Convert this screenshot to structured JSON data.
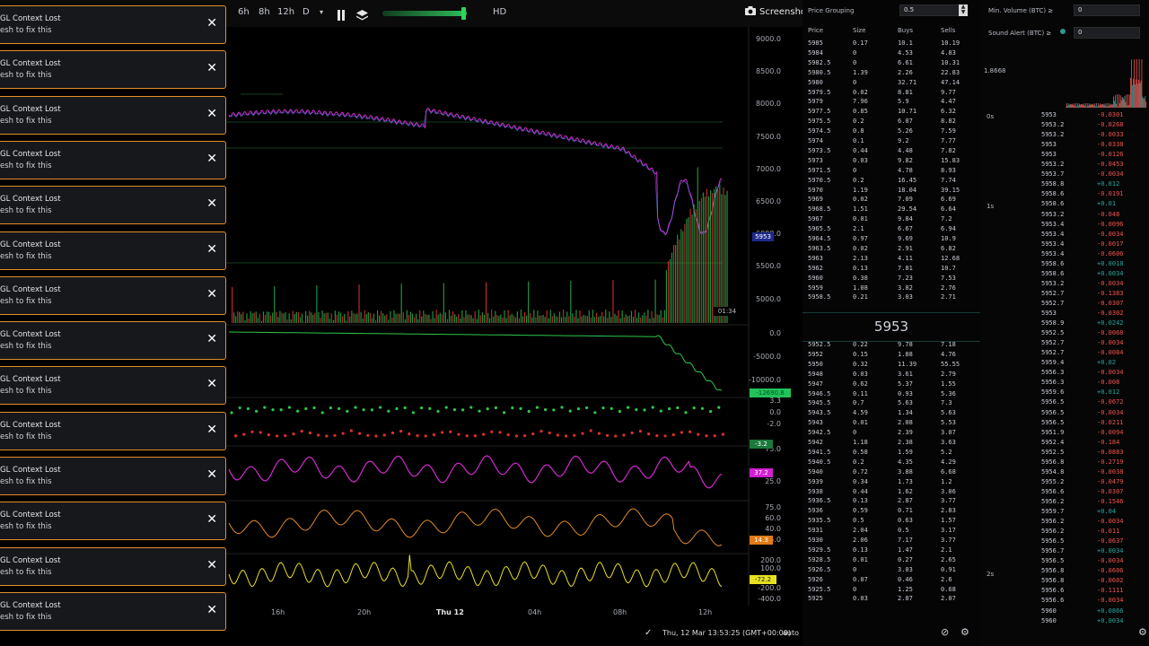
{
  "toolbar": {
    "timeframes": [
      "6h",
      "8h",
      "12h",
      "D"
    ],
    "dropdown_glyph": "▾",
    "hd_label": "HD",
    "screenshot_label": "Screenshot",
    "pause_icon": "pause-icon",
    "layers_icon": "layers-icon",
    "camera_icon": "camera-icon",
    "volume_level": 0.97,
    "accent_color": "#2ad65a"
  },
  "toast": {
    "title": "GL Context Lost",
    "message": "esh to fix this",
    "close": "✕",
    "count": 14,
    "border_color": "#e28e2c"
  },
  "price_axis": {
    "main": [
      "9000.0",
      "8500.0",
      "8000.0",
      "7500.0",
      "7000.0",
      "6500.0",
      "6000.0",
      "5500.0",
      "5000.0"
    ],
    "last_price": "5953",
    "countdown": "01:34",
    "cvd": [
      "0.0",
      "-5000.0",
      "-10000.0"
    ],
    "cvd_tag": "-12690.8",
    "delta": [
      "3.3",
      "0.0",
      "-2.0"
    ],
    "delta_tag": "-3.2",
    "rsi": [
      "75.0",
      "37.2",
      "25.0"
    ],
    "rsi2": [
      "75.0",
      "60.0",
      "40.0",
      "25.0",
      "14.3"
    ],
    "osc": [
      "200.0",
      "100.0",
      "-72.2",
      "-200.0",
      "-400.0"
    ]
  },
  "time_axis": [
    "16h",
    "20h",
    "Thu 12",
    "04h",
    "08h",
    "12h"
  ],
  "status": {
    "datetime": "Thu, 12 Mar 13:53:25 (GMT+00:00)",
    "mode": "auto",
    "check": "✓"
  },
  "orderbook": {
    "grouping_label": "Price Grouping",
    "grouping_value": "0.5",
    "columns": [
      "Price",
      "Size",
      "Buys",
      "Sells"
    ],
    "mid_price": "5953",
    "asks": [
      [
        "5985",
        "0.17",
        "10.1",
        "10.19"
      ],
      [
        "5984",
        "0",
        "4.53",
        "4.83"
      ],
      [
        "5982.5",
        "0",
        "6.61",
        "10.31"
      ],
      [
        "5980.5",
        "1.39",
        "2.26",
        "22.83"
      ],
      [
        "5980",
        "0",
        "32.71",
        "47.14"
      ],
      [
        "5979.5",
        "0.02",
        "8.81",
        "9.77"
      ],
      [
        "5979",
        "7.96",
        "5.9",
        "4.47"
      ],
      [
        "5977.5",
        "0.85",
        "10.71",
        "6.32"
      ],
      [
        "5975.5",
        "0.2",
        "6.07",
        "8.82"
      ],
      [
        "5974.5",
        "0.8",
        "5.26",
        "7.59"
      ],
      [
        "5974",
        "0.1",
        "9.2",
        "7.77"
      ],
      [
        "5973.5",
        "0.44",
        "4.48",
        "7.82"
      ],
      [
        "5973",
        "0.03",
        "9.82",
        "15.83"
      ],
      [
        "5971.5",
        "0",
        "4.78",
        "8.93"
      ],
      [
        "5970.5",
        "0.2",
        "16.45",
        "7.74"
      ],
      [
        "5970",
        "1.19",
        "18.04",
        "39.15"
      ],
      [
        "5969",
        "0.02",
        "7.09",
        "6.69"
      ],
      [
        "5968.5",
        "1.51",
        "29.54",
        "6.64"
      ],
      [
        "5967",
        "0.01",
        "9.84",
        "7.2"
      ],
      [
        "5965.5",
        "2.1",
        "6.67",
        "6.94"
      ],
      [
        "5964.5",
        "0.97",
        "9.69",
        "10.9"
      ],
      [
        "5963.5",
        "0.02",
        "2.91",
        "6.82"
      ],
      [
        "5963",
        "2.13",
        "4.11",
        "12.68"
      ],
      [
        "5962",
        "0.13",
        "7.81",
        "10.7"
      ],
      [
        "5960",
        "0.38",
        "7.23",
        "7.53"
      ],
      [
        "5959",
        "1.08",
        "3.82",
        "2.76"
      ],
      [
        "5958.5",
        "0.21",
        "3.03",
        "2.71"
      ]
    ],
    "bids": [
      [
        "5952.5",
        "0.22",
        "9.78",
        "7.18"
      ],
      [
        "5952",
        "0.15",
        "1.88",
        "4.76"
      ],
      [
        "5950",
        "0.32",
        "11.39",
        "55.55"
      ],
      [
        "5948",
        "0.03",
        "3.61",
        "2.79"
      ],
      [
        "5947",
        "0.62",
        "5.37",
        "1.55"
      ],
      [
        "5946.5",
        "0.11",
        "0.93",
        "5.36"
      ],
      [
        "5945.5",
        "0.7",
        "5.63",
        "7.3"
      ],
      [
        "5943.5",
        "4.59",
        "1.34",
        "5.63"
      ],
      [
        "5943",
        "0.01",
        "2.08",
        "5.53"
      ],
      [
        "5942.5",
        "0",
        "2.39",
        "3.07"
      ],
      [
        "5942",
        "1.18",
        "2.38",
        "3.63"
      ],
      [
        "5941.5",
        "0.58",
        "1.59",
        "5.2"
      ],
      [
        "5940.5",
        "0.2",
        "4.35",
        "4.29"
      ],
      [
        "5940",
        "0.72",
        "3.88",
        "6.68"
      ],
      [
        "5939",
        "0.34",
        "1.73",
        "1.2"
      ],
      [
        "5938",
        "0.44",
        "1.62",
        "3.06"
      ],
      [
        "5936.5",
        "0.13",
        "2.87",
        "3.77"
      ],
      [
        "5936",
        "0.59",
        "0.71",
        "2.83"
      ],
      [
        "5935.5",
        "0.5",
        "0.63",
        "1.57"
      ],
      [
        "5931",
        "2.04",
        "0.5",
        "3.17"
      ],
      [
        "5930",
        "2.06",
        "7.17",
        "3.77"
      ],
      [
        "5929.5",
        "0.13",
        "1.47",
        "2.1"
      ],
      [
        "5928.5",
        "0.01",
        "0.27",
        "2.65"
      ],
      [
        "5926.5",
        "0",
        "3.03",
        "0.91"
      ],
      [
        "5926",
        "0.07",
        "0.46",
        "2.6"
      ],
      [
        "5925.5",
        "0",
        "1.25",
        "0.68"
      ],
      [
        "5925",
        "0.03",
        "2.87",
        "2.07"
      ]
    ],
    "filter_icon": "filter-icon",
    "settings_icon": "gear-icon"
  },
  "trades": {
    "min_volume_label": "Min. Volume (BTC) ≥",
    "min_volume_value": "0",
    "sound_alert_label": "Sound Alert (BTC) ≥",
    "sound_alert_value": "0",
    "volume_marker": "1.8668",
    "time_labels": [
      "0s",
      "1s",
      "2s"
    ],
    "rows": [
      [
        "5953",
        "-0.0301"
      ],
      [
        "5953.2",
        "-0.0268"
      ],
      [
        "5953.2",
        "-0.0033"
      ],
      [
        "5953",
        "-0.0338"
      ],
      [
        "5953",
        "-0.0126"
      ],
      [
        "5953.2",
        "-0.0453"
      ],
      [
        "5953.7",
        "-0.0034"
      ],
      [
        "5958.8",
        "+0.012"
      ],
      [
        "5958.6",
        "-0.0191"
      ],
      [
        "5958.6",
        "+0.01"
      ],
      [
        "5953.2",
        "-0.048"
      ],
      [
        "5953.4",
        "-0.0096"
      ],
      [
        "5953.4",
        "-0.0034"
      ],
      [
        "5953.4",
        "-0.0017"
      ],
      [
        "5953.4",
        "-0.0606"
      ],
      [
        "5958.6",
        "+0.0018"
      ],
      [
        "5958.6",
        "+0.0034"
      ],
      [
        "5953.2",
        "-0.0034"
      ],
      [
        "5952.7",
        "-0.1383"
      ],
      [
        "5952.7",
        "-0.0307"
      ],
      [
        "5953",
        "-0.0302"
      ],
      [
        "5958.9",
        "+0.0242"
      ],
      [
        "5952.5",
        "-0.0068"
      ],
      [
        "5952.7",
        "-0.0034"
      ],
      [
        "5952.7",
        "-0.0084"
      ],
      [
        "5959.4",
        "+0.02"
      ],
      [
        "5956.3",
        "-0.0034"
      ],
      [
        "5956.3",
        "-0.008"
      ],
      [
        "5959.6",
        "+0.012"
      ],
      [
        "5956.5",
        "-0.0672"
      ],
      [
        "5956.5",
        "-0.0034"
      ],
      [
        "5956.5",
        "-0.0211"
      ],
      [
        "5951.9",
        "-0.0094"
      ],
      [
        "5952.4",
        "-0.184"
      ],
      [
        "5952.5",
        "-0.0883"
      ],
      [
        "5956.8",
        "-0.2719"
      ],
      [
        "5954.8",
        "-0.0038"
      ],
      [
        "5955.2",
        "-0.0479"
      ],
      [
        "5956.6",
        "-0.0307"
      ],
      [
        "5956.2",
        "-0.1546"
      ],
      [
        "5959.7",
        "+0.04"
      ],
      [
        "5956.2",
        "-0.0034"
      ],
      [
        "5956.2",
        "-0.011"
      ],
      [
        "5956.5",
        "-0.0637"
      ],
      [
        "5956.7",
        "+0.0034"
      ],
      [
        "5956.5",
        "-0.0034"
      ],
      [
        "5956.8",
        "-0.0606"
      ],
      [
        "5956.8",
        "-0.0602"
      ],
      [
        "5956.6",
        "-0.1111"
      ],
      [
        "5956.6",
        "-0.0034"
      ],
      [
        "5960",
        "+0.0866"
      ],
      [
        "5960",
        "+0.0034"
      ]
    ],
    "settings_icon": "gear-icon",
    "buy_color": "#26a69a",
    "sell_color": "#ef5350"
  }
}
